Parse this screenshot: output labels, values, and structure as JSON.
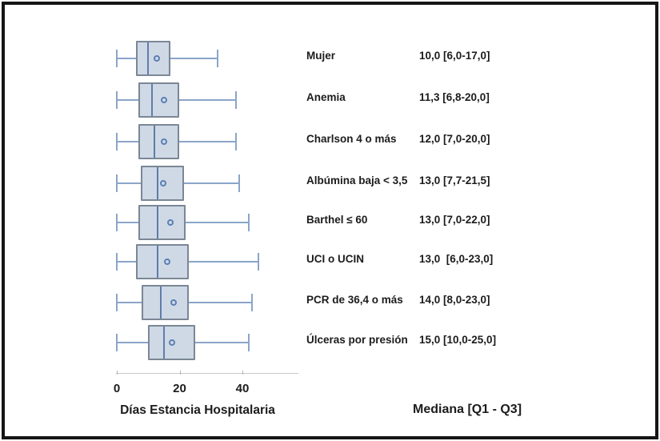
{
  "chart_data": {
    "type": "boxplot",
    "orientation": "horizontal",
    "xlabel": "Días Estancia Hospitalaria",
    "annotation": "Mediana [Q1 - Q3]",
    "x_ticks": [
      "0",
      "20",
      "40"
    ],
    "x_tick_values": [
      0,
      20,
      40
    ],
    "xlim": [
      0,
      58
    ],
    "grid": false,
    "rows": [
      {
        "label": "Mujer",
        "value_label": "10,0 [6,0-17,0]",
        "median": 10.0,
        "q1": 6.0,
        "q3": 17.0,
        "whisker_low": 0.0,
        "whisker_high": 32.0,
        "mean": 12.7
      },
      {
        "label": "Anemia",
        "value_label": "11,3 [6,8-20,0]",
        "median": 11.3,
        "q1": 6.8,
        "q3": 20.0,
        "whisker_low": 0.0,
        "whisker_high": 38.0,
        "mean": 15.0
      },
      {
        "label": "Charlson 4 o más",
        "value_label": "12,0 [7,0-20,0]",
        "median": 12.0,
        "q1": 7.0,
        "q3": 20.0,
        "whisker_low": 0.0,
        "whisker_high": 38.0,
        "mean": 15.0
      },
      {
        "label": "Albúmina baja < 3,5",
        "value_label": "13,0 [7,7-21,5]",
        "median": 13.0,
        "q1": 7.7,
        "q3": 21.5,
        "whisker_low": 0.0,
        "whisker_high": 39.0,
        "mean": 14.8
      },
      {
        "label": "Barthel ≤ 60",
        "value_label": "13,0 [7,0-22,0]",
        "median": 13.0,
        "q1": 7.0,
        "q3": 22.0,
        "whisker_low": 0.0,
        "whisker_high": 42.0,
        "mean": 17.0
      },
      {
        "label": "UCI o UCIN",
        "value_label": "13,0  [6,0-23,0]",
        "median": 13.0,
        "q1": 6.0,
        "q3": 23.0,
        "whisker_low": 0.0,
        "whisker_high": 45.0,
        "mean": 16.0
      },
      {
        "label": "PCR de 36,4 o más",
        "value_label": "14,0 [8,0-23,0]",
        "median": 14.0,
        "q1": 8.0,
        "q3": 23.0,
        "whisker_low": 0.0,
        "whisker_high": 43.0,
        "mean": 18.0
      },
      {
        "label": "Úlceras por presión",
        "value_label": "15,0 [10,0-25,0]",
        "median": 15.0,
        "q1": 10.0,
        "q3": 25.0,
        "whisker_low": 0.0,
        "whisker_high": 42.0,
        "mean": 17.5
      }
    ],
    "colors": {
      "box_fill": "#cfd9e6",
      "box_border": "#7b8795",
      "median_line": "#5f7cab",
      "whisker": "#8ba5c9",
      "mean_marker": "#5b7fb5",
      "axis_line": "#c9c9c9",
      "tick_mark": "#b5b5b5",
      "text": "#1c1c1c",
      "frame_border": "#151515"
    }
  }
}
